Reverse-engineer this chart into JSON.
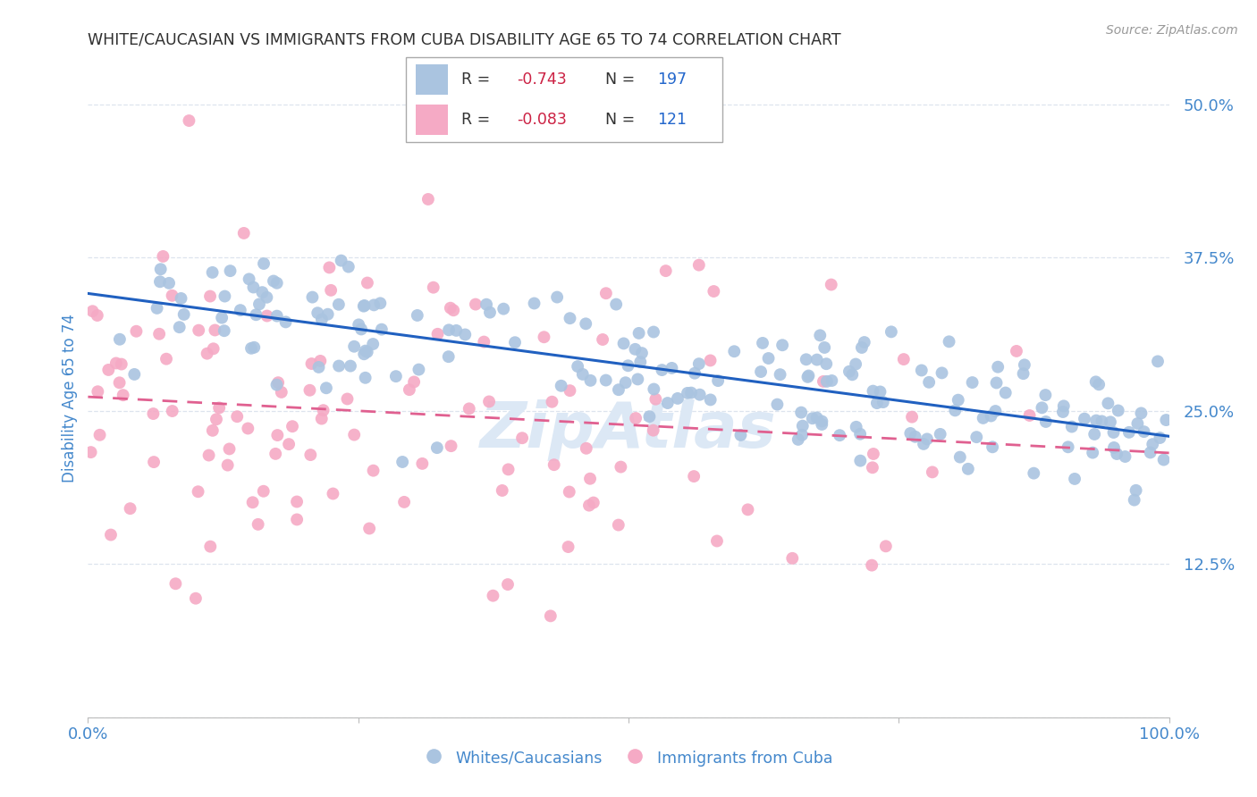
{
  "title": "WHITE/CAUCASIAN VS IMMIGRANTS FROM CUBA DISABILITY AGE 65 TO 74 CORRELATION CHART",
  "source": "Source: ZipAtlas.com",
  "ylabel": "Disability Age 65 to 74",
  "yticks": [
    0.0,
    0.125,
    0.25,
    0.375,
    0.5
  ],
  "ytick_labels": [
    "",
    "12.5%",
    "25.0%",
    "37.5%",
    "50.0%"
  ],
  "blue_R": -0.743,
  "blue_N": 197,
  "pink_R": -0.083,
  "pink_N": 121,
  "blue_color": "#aac4e0",
  "pink_color": "#f5aac5",
  "blue_line_color": "#2060c0",
  "pink_line_color": "#e06090",
  "title_color": "#303030",
  "axis_label_color": "#4488cc",
  "legend_R_color": "#cc2244",
  "legend_N_color": "#2266cc",
  "background_color": "#ffffff",
  "grid_color": "#dde4ee",
  "seed": 12
}
